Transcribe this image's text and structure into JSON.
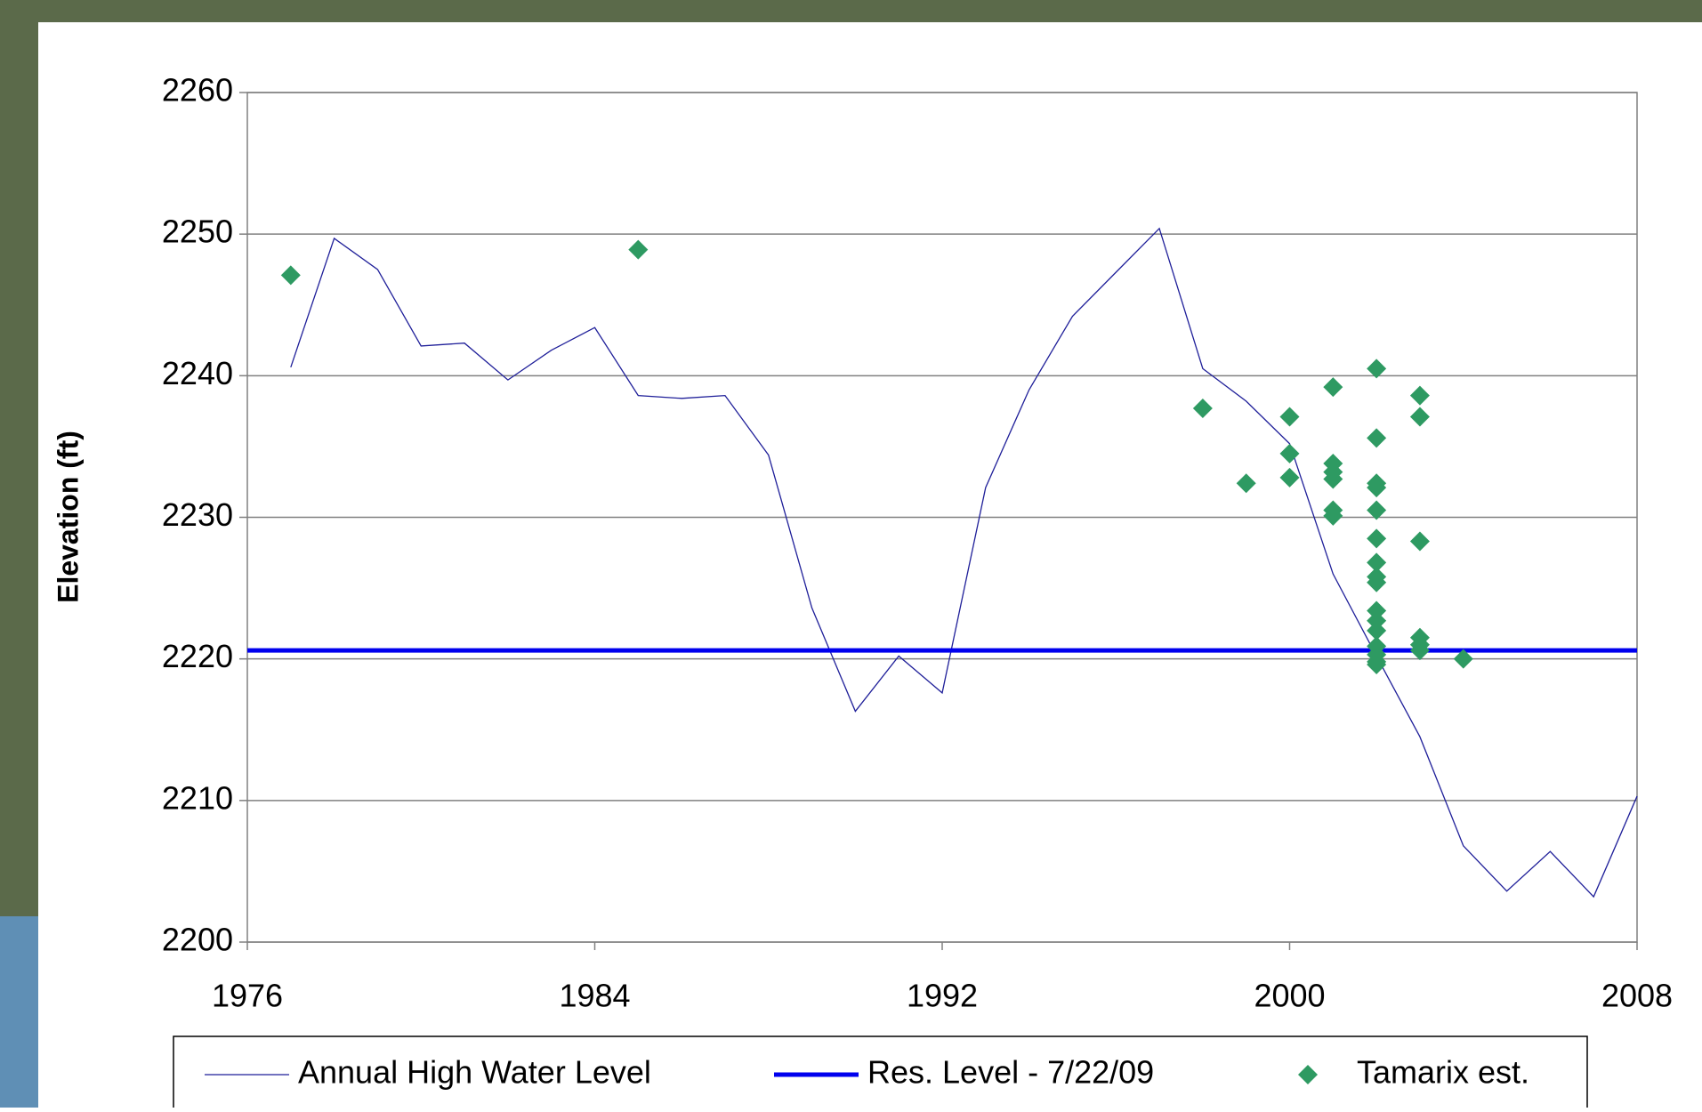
{
  "chart_data": {
    "type": "line",
    "ylabel": "Elevation (ft)",
    "xlim": [
      1976,
      2008
    ],
    "xticks": [
      1976,
      1984,
      1992,
      2000,
      2008
    ],
    "ylim": [
      2200,
      2260
    ],
    "yticks": [
      2200,
      2210,
      2220,
      2230,
      2240,
      2250,
      2260
    ],
    "grid": true,
    "legend": "bottom",
    "series": [
      {
        "name": "Annual High Water Level",
        "type": "line",
        "color": "#1f1f99",
        "x": [
          1977,
          1978,
          1979,
          1980,
          1981,
          1982,
          1983,
          1984,
          1985,
          1986,
          1987,
          1988,
          1989,
          1990,
          1991,
          1992,
          1993,
          1994,
          1995,
          1996,
          1997,
          1998,
          1999,
          2000,
          2001,
          2002,
          2003,
          2004,
          2005,
          2006,
          2007,
          2008
        ],
        "values": [
          2240.6,
          2249.7,
          2247.5,
          2242.1,
          2242.3,
          2239.7,
          2241.8,
          2243.4,
          2238.6,
          2238.4,
          2238.6,
          2234.4,
          2223.6,
          2216.3,
          2220.2,
          2217.6,
          2232.1,
          2239,
          2244.2,
          2247.3,
          2250.4,
          2240.5,
          2238.2,
          2235.2,
          2226,
          2220.2,
          2214.5,
          2206.8,
          2203.6,
          2206.4,
          2203.2,
          2210.3
        ]
      },
      {
        "name": "Res. Level - 7/22/09",
        "type": "line",
        "color": "#0000ee",
        "x": [
          1976,
          2008
        ],
        "values": [
          2220.6,
          2220.6
        ]
      },
      {
        "name": "Tamarix est.",
        "type": "scatter",
        "color": "#2e9a62",
        "x": [
          1977,
          1985,
          1998,
          1999,
          2000,
          2000,
          2000,
          2001,
          2001,
          2001,
          2001,
          2001,
          2001,
          2002,
          2002,
          2002,
          2002,
          2002,
          2002,
          2002,
          2002,
          2002,
          2002,
          2002,
          2002,
          2002,
          2002,
          2002,
          2002,
          2003,
          2003,
          2003,
          2003,
          2003,
          2003,
          2004
        ],
        "values": [
          2247.1,
          2248.9,
          2237.7,
          2232.4,
          2237.1,
          2234.5,
          2232.8,
          2239.2,
          2233.8,
          2233.2,
          2232.7,
          2230.5,
          2230.1,
          2240.5,
          2235.6,
          2232.4,
          2232.1,
          2230.5,
          2228.5,
          2226.8,
          2225.8,
          2225.4,
          2223.4,
          2222.7,
          2222,
          2220.9,
          2220.3,
          2219.8,
          2219.6,
          2238.6,
          2237.1,
          2228.3,
          2221.5,
          2221,
          2220.6,
          2220
        ]
      }
    ]
  }
}
